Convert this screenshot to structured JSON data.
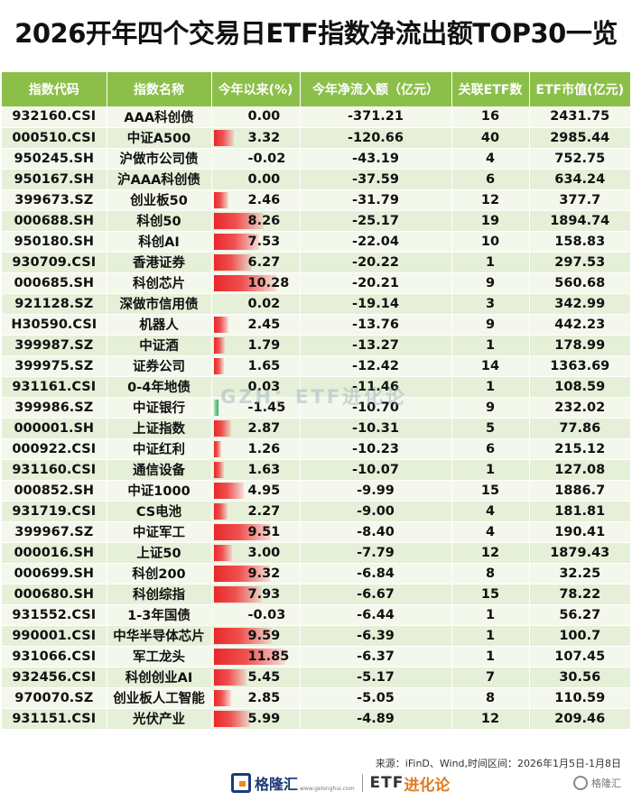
{
  "title": "2026开年四个交易日ETF指数净流出额TOP30一览",
  "table": {
    "headers": [
      "指数代码",
      "指数名称",
      "今年以来(%)",
      "今年净流入额（亿元）",
      "关联ETF数",
      "ETF市值(亿元)"
    ],
    "rows": [
      {
        "code": "932160.CSI",
        "name": "AAA科创债",
        "ytd": "0.00",
        "inflow": "-371.21",
        "etf_count": "16",
        "mkt_cap": "2431.75"
      },
      {
        "code": "000510.CSI",
        "name": "中证A500",
        "ytd": "3.32",
        "inflow": "-120.66",
        "etf_count": "40",
        "mkt_cap": "2985.44"
      },
      {
        "code": "950245.SH",
        "name": "沪做市公司债",
        "ytd": "-0.02",
        "inflow": "-43.19",
        "etf_count": "4",
        "mkt_cap": "752.75"
      },
      {
        "code": "950167.SH",
        "name": "沪AAA科创债",
        "ytd": "0.00",
        "inflow": "-37.59",
        "etf_count": "6",
        "mkt_cap": "634.24"
      },
      {
        "code": "399673.SZ",
        "name": "创业板50",
        "ytd": "2.46",
        "inflow": "-31.79",
        "etf_count": "12",
        "mkt_cap": "377.7"
      },
      {
        "code": "000688.SH",
        "name": "科创50",
        "ytd": "8.26",
        "inflow": "-25.17",
        "etf_count": "19",
        "mkt_cap": "1894.74"
      },
      {
        "code": "950180.SH",
        "name": "科创AI",
        "ytd": "7.53",
        "inflow": "-22.04",
        "etf_count": "10",
        "mkt_cap": "158.83"
      },
      {
        "code": "930709.CSI",
        "name": "香港证券",
        "ytd": "6.27",
        "inflow": "-20.22",
        "etf_count": "1",
        "mkt_cap": "297.53"
      },
      {
        "code": "000685.SH",
        "name": "科创芯片",
        "ytd": "10.28",
        "inflow": "-20.21",
        "etf_count": "9",
        "mkt_cap": "560.68"
      },
      {
        "code": "921128.SZ",
        "name": "深做市信用债",
        "ytd": "0.02",
        "inflow": "-19.14",
        "etf_count": "3",
        "mkt_cap": "342.99"
      },
      {
        "code": "H30590.CSI",
        "name": "机器人",
        "ytd": "2.45",
        "inflow": "-13.76",
        "etf_count": "9",
        "mkt_cap": "442.23"
      },
      {
        "code": "399987.SZ",
        "name": "中证酒",
        "ytd": "1.79",
        "inflow": "-13.27",
        "etf_count": "1",
        "mkt_cap": "178.99"
      },
      {
        "code": "399975.SZ",
        "name": "证券公司",
        "ytd": "1.65",
        "inflow": "-12.42",
        "etf_count": "14",
        "mkt_cap": "1363.69"
      },
      {
        "code": "931161.CSI",
        "name": "0-4年地债",
        "ytd": "0.03",
        "inflow": "-11.46",
        "etf_count": "1",
        "mkt_cap": "108.59"
      },
      {
        "code": "399986.SZ",
        "name": "中证银行",
        "ytd": "-1.45",
        "inflow": "-10.70",
        "etf_count": "9",
        "mkt_cap": "232.02"
      },
      {
        "code": "000001.SH",
        "name": "上证指数",
        "ytd": "2.87",
        "inflow": "-10.31",
        "etf_count": "5",
        "mkt_cap": "77.86"
      },
      {
        "code": "000922.CSI",
        "name": "中证红利",
        "ytd": "1.26",
        "inflow": "-10.23",
        "etf_count": "6",
        "mkt_cap": "215.12"
      },
      {
        "code": "931160.CSI",
        "name": "通信设备",
        "ytd": "1.63",
        "inflow": "-10.07",
        "etf_count": "1",
        "mkt_cap": "127.08"
      },
      {
        "code": "000852.SH",
        "name": "中证1000",
        "ytd": "4.95",
        "inflow": "-9.99",
        "etf_count": "15",
        "mkt_cap": "1886.7"
      },
      {
        "code": "931719.CSI",
        "name": "CS电池",
        "ytd": "2.27",
        "inflow": "-9.00",
        "etf_count": "4",
        "mkt_cap": "181.81"
      },
      {
        "code": "399967.SZ",
        "name": "中证军工",
        "ytd": "9.51",
        "inflow": "-8.40",
        "etf_count": "4",
        "mkt_cap": "190.41"
      },
      {
        "code": "000016.SH",
        "name": "上证50",
        "ytd": "3.00",
        "inflow": "-7.79",
        "etf_count": "12",
        "mkt_cap": "1879.43"
      },
      {
        "code": "000699.SH",
        "name": "科创200",
        "ytd": "9.32",
        "inflow": "-6.84",
        "etf_count": "8",
        "mkt_cap": "32.25"
      },
      {
        "code": "000680.SH",
        "name": "科创综指",
        "ytd": "7.93",
        "inflow": "-6.67",
        "etf_count": "15",
        "mkt_cap": "78.22"
      },
      {
        "code": "931552.CSI",
        "name": "1-3年国债",
        "ytd": "-0.03",
        "inflow": "-6.44",
        "etf_count": "1",
        "mkt_cap": "56.27"
      },
      {
        "code": "990001.CSI",
        "name": "中华半导体芯片",
        "ytd": "9.59",
        "inflow": "-6.39",
        "etf_count": "1",
        "mkt_cap": "100.7"
      },
      {
        "code": "931066.CSI",
        "name": "军工龙头",
        "ytd": "11.85",
        "inflow": "-6.37",
        "etf_count": "1",
        "mkt_cap": "107.45"
      },
      {
        "code": "932456.CSI",
        "name": "科创创业AI",
        "ytd": "5.45",
        "inflow": "-5.17",
        "etf_count": "7",
        "mkt_cap": "30.56"
      },
      {
        "code": "970070.SZ",
        "name": "创业板人工智能",
        "ytd": "2.85",
        "inflow": "-5.05",
        "etf_count": "8",
        "mkt_cap": "110.59"
      },
      {
        "code": "931151.CSI",
        "name": "光伏产业",
        "ytd": "5.99",
        "inflow": "-4.89",
        "etf_count": "12",
        "mkt_cap": "209.46"
      }
    ]
  },
  "bar_colors": {
    "positive": "#e8282a",
    "negative": "#2fae5a",
    "header": "#8cbf4a"
  },
  "source_note": "来源：iFinD、Wind,时间区间：2026年1月5日-1月8日",
  "watermark": "GZH：ETF进化论",
  "brand": {
    "logo_icon": "gelonghui-g-icon",
    "name": "格隆汇",
    "site": "www.gelonghui.com",
    "etf_label": "ETF",
    "etf_suffix": "进化论"
  },
  "corner_mark": "格隆汇"
}
